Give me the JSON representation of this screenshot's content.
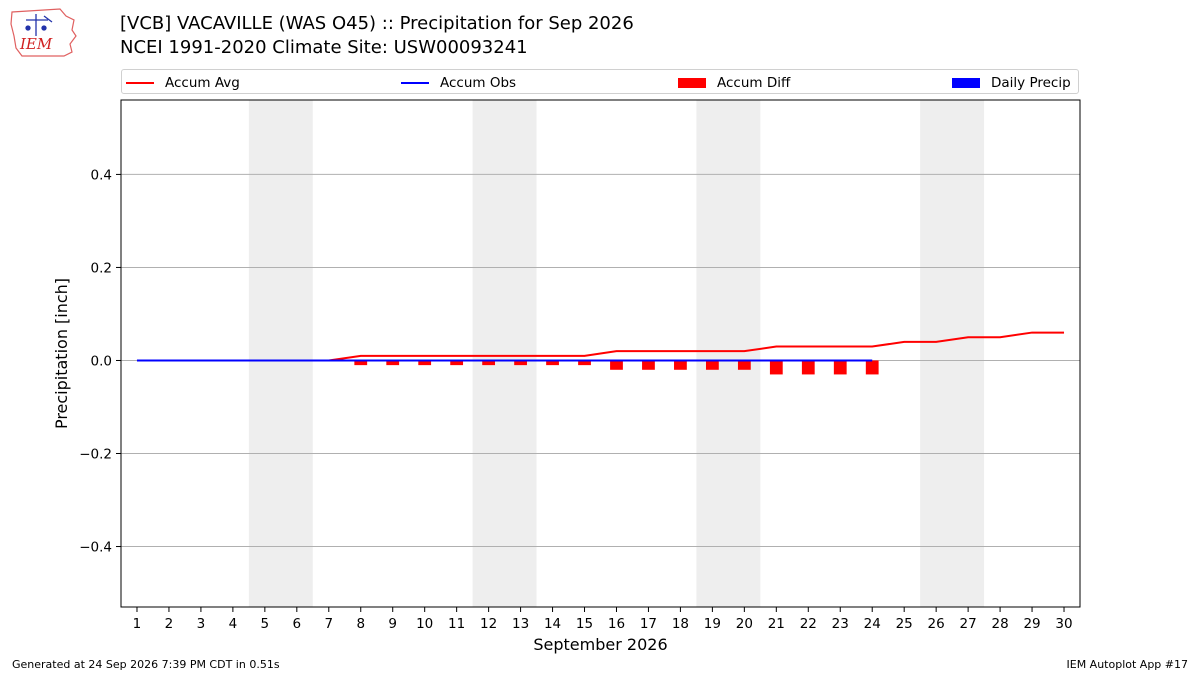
{
  "header": {
    "logo_text": "IEM",
    "title_line1": "[VCB] VACAVILLE (WAS O45) :: Precipitation for Sep 2026",
    "title_line2": "NCEI 1991-2020 Climate Site: USW00093241"
  },
  "legend": [
    {
      "label": "Accum Avg",
      "kind": "line",
      "color": "#ff0000"
    },
    {
      "label": "Accum Obs",
      "kind": "line",
      "color": "#0000ff"
    },
    {
      "label": "Accum Diff",
      "kind": "box",
      "color": "#ff0000"
    },
    {
      "label": "Daily Precip",
      "kind": "box",
      "color": "#0000ff"
    }
  ],
  "footer": {
    "left": "Generated at 24 Sep 2026 7:39 PM CDT in 0.51s",
    "right": "IEM Autoplot App #17"
  },
  "chart_data": {
    "type": "line",
    "title": "[VCB] VACAVILLE (WAS O45) :: Precipitation for Sep 2026",
    "subtitle": "NCEI 1991-2020 Climate Site: USW00093241",
    "xlabel": "September 2026",
    "ylabel": "Precipitation [inch]",
    "x": [
      1,
      2,
      3,
      4,
      5,
      6,
      7,
      8,
      9,
      10,
      11,
      12,
      13,
      14,
      15,
      16,
      17,
      18,
      19,
      20,
      21,
      22,
      23,
      24,
      25,
      26,
      27,
      28,
      29,
      30
    ],
    "xlim": [
      0.5,
      30.5
    ],
    "ylim": [
      -0.53,
      0.56
    ],
    "yticks": [
      -0.4,
      -0.2,
      0.0,
      0.2,
      0.4
    ],
    "ytick_labels": [
      "−0.4",
      "−0.2",
      "0.0",
      "0.2",
      "0.4"
    ],
    "grid": "horizontal",
    "weekend_shading": [
      [
        5,
        6
      ],
      [
        12,
        13
      ],
      [
        19,
        20
      ],
      [
        26,
        27
      ]
    ],
    "series": [
      {
        "name": "Accum Avg",
        "type": "line",
        "color": "#ff0000",
        "x": [
          1,
          2,
          3,
          4,
          5,
          6,
          7,
          8,
          9,
          10,
          11,
          12,
          13,
          14,
          15,
          16,
          17,
          18,
          19,
          20,
          21,
          22,
          23,
          24,
          25,
          26,
          27,
          28,
          29,
          30
        ],
        "values": [
          0,
          0,
          0,
          0,
          0,
          0,
          0,
          0.01,
          0.01,
          0.01,
          0.01,
          0.01,
          0.01,
          0.01,
          0.01,
          0.02,
          0.02,
          0.02,
          0.02,
          0.02,
          0.03,
          0.03,
          0.03,
          0.03,
          0.04,
          0.04,
          0.05,
          0.05,
          0.06,
          0.06
        ]
      },
      {
        "name": "Accum Obs",
        "type": "line",
        "color": "#0000ff",
        "x": [
          1,
          2,
          3,
          4,
          5,
          6,
          7,
          8,
          9,
          10,
          11,
          12,
          13,
          14,
          15,
          16,
          17,
          18,
          19,
          20,
          21,
          22,
          23,
          24
        ],
        "values": [
          0,
          0,
          0,
          0,
          0,
          0,
          0,
          0,
          0,
          0,
          0,
          0,
          0,
          0,
          0,
          0,
          0,
          0,
          0,
          0,
          0,
          0,
          0,
          0
        ]
      },
      {
        "name": "Accum Diff",
        "type": "bar",
        "color": "#ff0000",
        "x": [
          1,
          2,
          3,
          4,
          5,
          6,
          7,
          8,
          9,
          10,
          11,
          12,
          13,
          14,
          15,
          16,
          17,
          18,
          19,
          20,
          21,
          22,
          23,
          24
        ],
        "values": [
          0,
          0,
          0,
          0,
          0,
          0,
          0,
          -0.01,
          -0.01,
          -0.01,
          -0.01,
          -0.01,
          -0.01,
          -0.01,
          -0.01,
          -0.02,
          -0.02,
          -0.02,
          -0.02,
          -0.02,
          -0.03,
          -0.03,
          -0.03,
          -0.03
        ]
      },
      {
        "name": "Daily Precip",
        "type": "bar",
        "color": "#0000ff",
        "x": [
          1,
          2,
          3,
          4,
          5,
          6,
          7,
          8,
          9,
          10,
          11,
          12,
          13,
          14,
          15,
          16,
          17,
          18,
          19,
          20,
          21,
          22,
          23,
          24
        ],
        "values": [
          0,
          0,
          0,
          0,
          0,
          0,
          0,
          0,
          0,
          0,
          0,
          0,
          0,
          0,
          0,
          0,
          0,
          0,
          0,
          0,
          0,
          0,
          0,
          0
        ]
      }
    ]
  }
}
